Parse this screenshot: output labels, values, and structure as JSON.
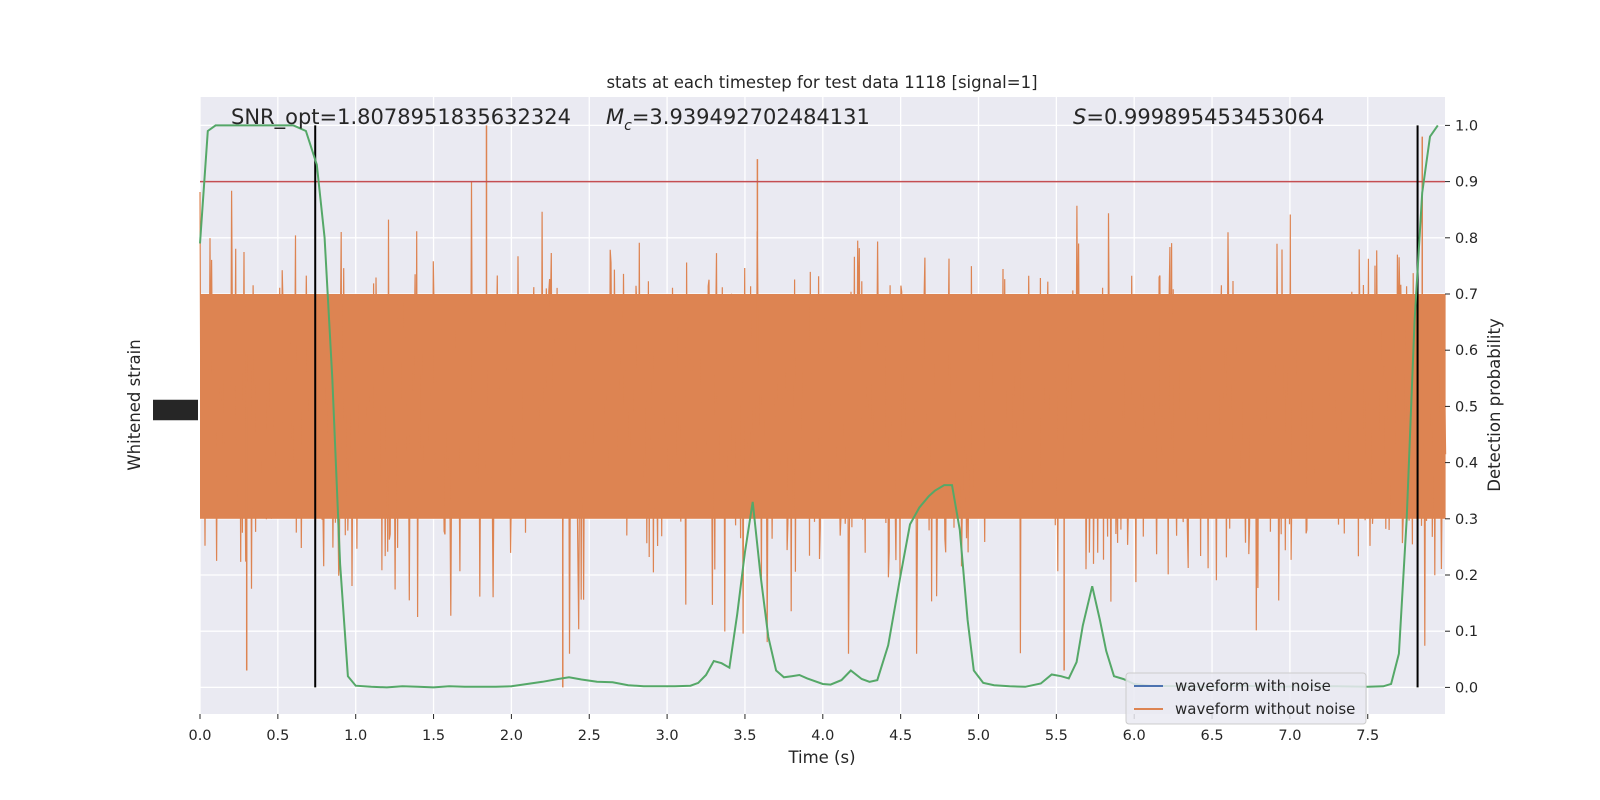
{
  "chart_data": {
    "type": "line",
    "title": "stats at each timestep for test data 1118 [signal=1]",
    "xlabel": "Time (s)",
    "ylabel_left": "Whitened strain",
    "ylabel_right": "Detection probability",
    "xlim": [
      0.0,
      8.0
    ],
    "ylim_right": [
      -0.05,
      1.05
    ],
    "x_ticks": [
      "0.0",
      "0.5",
      "1.0",
      "1.5",
      "2.0",
      "2.5",
      "3.0",
      "3.5",
      "4.0",
      "4.5",
      "5.0",
      "5.5",
      "6.0",
      "6.5",
      "7.0",
      "7.5"
    ],
    "y_ticks_right": [
      "0.0",
      "0.1",
      "0.2",
      "0.3",
      "0.4",
      "0.5",
      "0.6",
      "0.7",
      "0.8",
      "0.9",
      "1.0"
    ],
    "grid": true,
    "background": "#eaeaf2",
    "annotations": {
      "snr": "SNR_opt=1.8078951835632324",
      "mc_symbol": "M",
      "mc_sub": "c",
      "mc_value": "=3.939492702484131",
      "s_symbol": "S",
      "s_value": "=0.999895453453064"
    },
    "threshold": {
      "value": 0.9,
      "color": "#c44e52"
    },
    "vertical_markers": [
      0.74,
      7.82
    ],
    "legend": {
      "position": "lower-right",
      "entries": [
        {
          "label": "waveform with noise",
          "color": "#4c72b0"
        },
        {
          "label": "waveform without noise",
          "color": "#dd8452"
        }
      ]
    },
    "noise_series": {
      "name": "waveform without noise",
      "color": "#dd8452",
      "core_band": [
        0.3,
        0.7
      ],
      "notable_peaks": [
        {
          "t": 1.84,
          "v": 1.0
        },
        {
          "t": 3.58,
          "v": 0.94
        },
        {
          "t": 7.85,
          "v": 0.98
        },
        {
          "t": 2.33,
          "v": 0.0
        },
        {
          "t": 5.55,
          "v": 0.03
        },
        {
          "t": 0.3,
          "v": 0.03
        }
      ]
    },
    "probability_series": {
      "name": "detection probability",
      "color": "#55a868",
      "points": [
        [
          0.0,
          0.79
        ],
        [
          0.05,
          0.99
        ],
        [
          0.1,
          1.0
        ],
        [
          0.2,
          1.0
        ],
        [
          0.3,
          1.0
        ],
        [
          0.4,
          1.0
        ],
        [
          0.5,
          1.0
        ],
        [
          0.6,
          1.0
        ],
        [
          0.68,
          0.99
        ],
        [
          0.75,
          0.93
        ],
        [
          0.8,
          0.8
        ],
        [
          0.85,
          0.55
        ],
        [
          0.9,
          0.22
        ],
        [
          0.95,
          0.02
        ],
        [
          1.0,
          0.003
        ],
        [
          1.1,
          0.001
        ],
        [
          1.2,
          0.0
        ],
        [
          1.3,
          0.002
        ],
        [
          1.4,
          0.001
        ],
        [
          1.5,
          0.0
        ],
        [
          1.6,
          0.002
        ],
        [
          1.7,
          0.001
        ],
        [
          1.8,
          0.001
        ],
        [
          1.9,
          0.001
        ],
        [
          2.0,
          0.002
        ],
        [
          2.1,
          0.006
        ],
        [
          2.2,
          0.01
        ],
        [
          2.3,
          0.015
        ],
        [
          2.37,
          0.018
        ],
        [
          2.45,
          0.014
        ],
        [
          2.55,
          0.01
        ],
        [
          2.65,
          0.009
        ],
        [
          2.75,
          0.004
        ],
        [
          2.85,
          0.002
        ],
        [
          2.95,
          0.002
        ],
        [
          3.05,
          0.002
        ],
        [
          3.15,
          0.003
        ],
        [
          3.2,
          0.008
        ],
        [
          3.25,
          0.022
        ],
        [
          3.3,
          0.047
        ],
        [
          3.35,
          0.043
        ],
        [
          3.4,
          0.035
        ],
        [
          3.45,
          0.13
        ],
        [
          3.5,
          0.24
        ],
        [
          3.55,
          0.33
        ],
        [
          3.6,
          0.2
        ],
        [
          3.65,
          0.09
        ],
        [
          3.7,
          0.03
        ],
        [
          3.75,
          0.018
        ],
        [
          3.8,
          0.02
        ],
        [
          3.85,
          0.022
        ],
        [
          3.9,
          0.016
        ],
        [
          4.0,
          0.006
        ],
        [
          4.05,
          0.005
        ],
        [
          4.12,
          0.013
        ],
        [
          4.18,
          0.03
        ],
        [
          4.25,
          0.015
        ],
        [
          4.3,
          0.01
        ],
        [
          4.35,
          0.013
        ],
        [
          4.42,
          0.075
        ],
        [
          4.5,
          0.2
        ],
        [
          4.56,
          0.29
        ],
        [
          4.62,
          0.32
        ],
        [
          4.68,
          0.34
        ],
        [
          4.72,
          0.35
        ],
        [
          4.78,
          0.36
        ],
        [
          4.83,
          0.36
        ],
        [
          4.88,
          0.28
        ],
        [
          4.93,
          0.12
        ],
        [
          4.97,
          0.03
        ],
        [
          5.03,
          0.008
        ],
        [
          5.1,
          0.004
        ],
        [
          5.2,
          0.002
        ],
        [
          5.3,
          0.001
        ],
        [
          5.4,
          0.007
        ],
        [
          5.47,
          0.023
        ],
        [
          5.53,
          0.02
        ],
        [
          5.58,
          0.016
        ],
        [
          5.63,
          0.045
        ],
        [
          5.67,
          0.11
        ],
        [
          5.73,
          0.18
        ],
        [
          5.78,
          0.12
        ],
        [
          5.82,
          0.065
        ],
        [
          5.87,
          0.02
        ],
        [
          5.93,
          0.015
        ],
        [
          6.0,
          0.006
        ],
        [
          6.1,
          0.003
        ],
        [
          6.3,
          0.002
        ],
        [
          6.5,
          0.001
        ],
        [
          6.7,
          0.003
        ],
        [
          6.9,
          0.001
        ],
        [
          7.1,
          0.002
        ],
        [
          7.3,
          0.002
        ],
        [
          7.5,
          0.001
        ],
        [
          7.6,
          0.002
        ],
        [
          7.65,
          0.006
        ],
        [
          7.7,
          0.06
        ],
        [
          7.75,
          0.3
        ],
        [
          7.8,
          0.65
        ],
        [
          7.85,
          0.88
        ],
        [
          7.9,
          0.98
        ],
        [
          7.95,
          1.0
        ]
      ]
    }
  }
}
